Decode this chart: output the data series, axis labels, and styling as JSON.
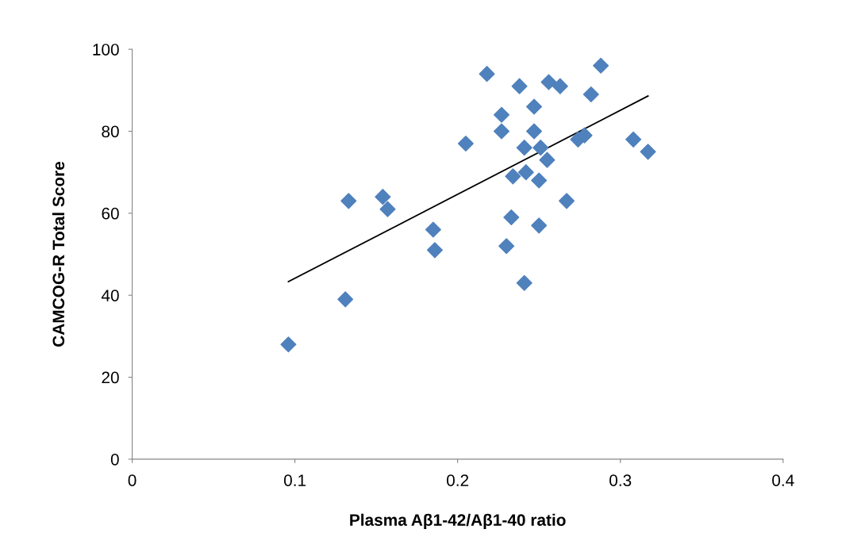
{
  "chart_data": {
    "type": "scatter",
    "xlabel": "Plasma Aβ1-42/Aβ1-40 ratio",
    "ylabel": "CAMCOG-R Total Score",
    "xlim": [
      0,
      0.4
    ],
    "xticks": [
      0,
      0.1,
      0.2,
      0.3,
      0.4
    ],
    "ylim": [
      0,
      100
    ],
    "yticks": [
      0,
      20,
      40,
      60,
      80,
      100
    ],
    "grid": false,
    "legend": false,
    "series": [
      {
        "marker": "diamond",
        "color": "#4f81bd",
        "x": [
          0.096,
          0.131,
          0.133,
          0.154,
          0.157,
          0.185,
          0.186,
          0.205,
          0.218,
          0.227,
          0.227,
          0.23,
          0.238,
          0.233,
          0.234,
          0.241,
          0.242,
          0.241,
          0.247,
          0.247,
          0.25,
          0.25,
          0.251,
          0.255,
          0.256,
          0.263,
          0.267,
          0.274,
          0.278,
          0.282,
          0.288,
          0.308,
          0.317
        ],
        "values": [
          28,
          39,
          63,
          64,
          61,
          56,
          51,
          77,
          94,
          84,
          80,
          52,
          91,
          59,
          69,
          76,
          70,
          43,
          86,
          80,
          68,
          57,
          76,
          73,
          92,
          91,
          63,
          78,
          79,
          89,
          96,
          78,
          75
        ]
      },
      {
        "type": "line",
        "marker": "none",
        "color": "#000000",
        "x": [
          0.096,
          0.317
        ],
        "values": [
          43.3,
          88.6
        ]
      }
    ]
  }
}
